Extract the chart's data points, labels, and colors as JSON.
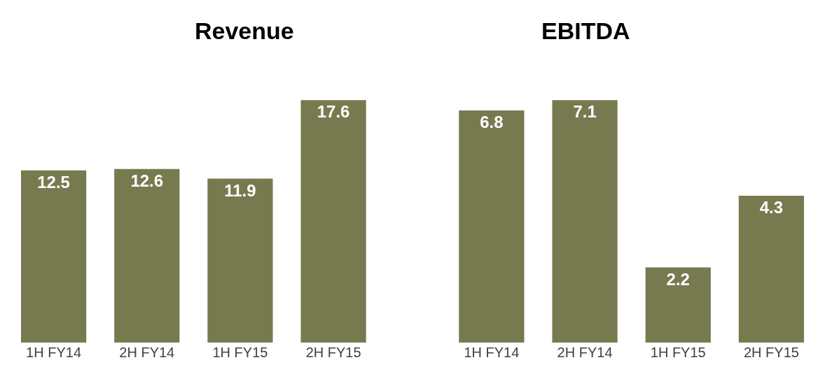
{
  "chart_data": [
    {
      "type": "bar",
      "title": "Revenue",
      "categories": [
        "1H FY14",
        "2H FY14",
        "1H FY15",
        "2H FY15"
      ],
      "values": [
        12.5,
        12.6,
        11.9,
        17.6
      ],
      "color": "#777a4f",
      "data_labels": true,
      "tick_labels": "x"
    },
    {
      "type": "bar",
      "title": "EBITDA",
      "categories": [
        "1H FY14",
        "2H FY14",
        "1H FY15",
        "2H FY15"
      ],
      "values": [
        6.8,
        7.1,
        2.2,
        4.3
      ],
      "color": "#777a4f",
      "data_labels": true,
      "tick_labels": "x"
    }
  ]
}
